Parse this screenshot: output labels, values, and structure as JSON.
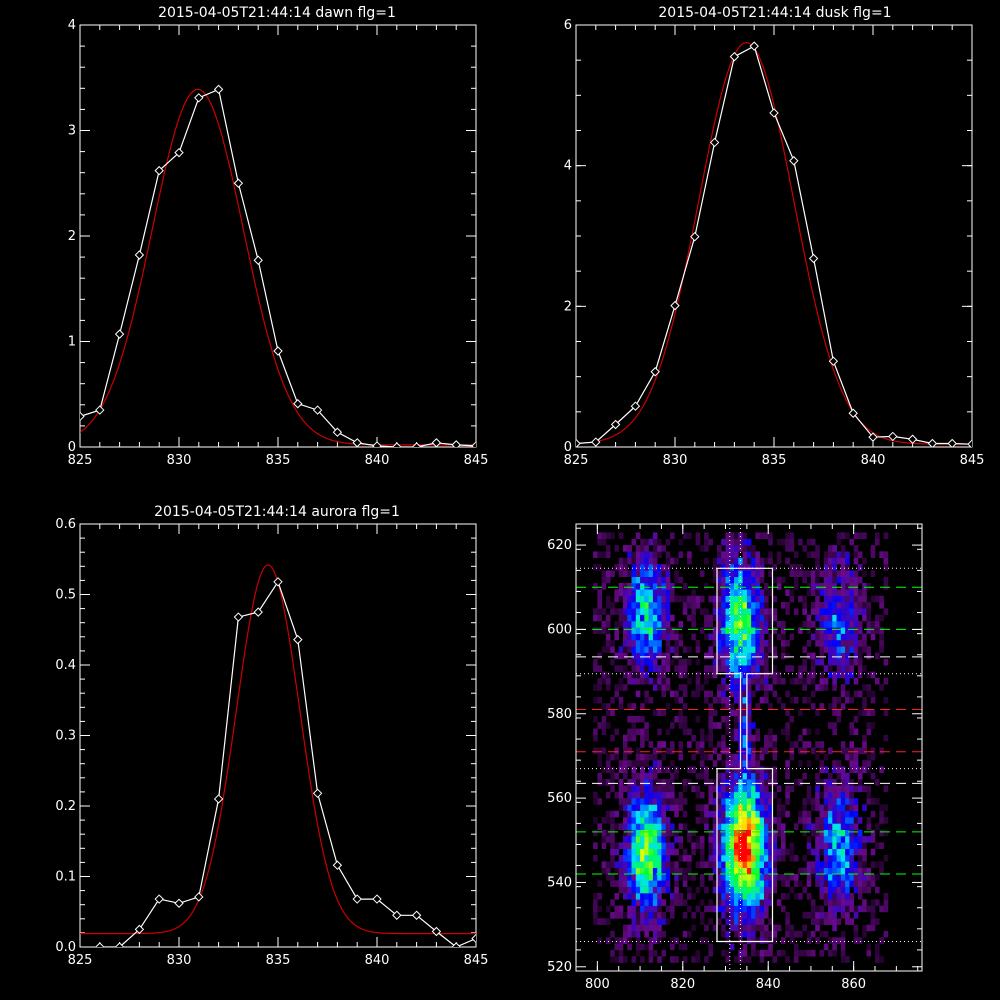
{
  "chart_data": [
    {
      "id": "dawn",
      "type": "line",
      "title": "2015-04-05T21:44:14 dawn flg=1",
      "xlabel": "",
      "ylabel": "",
      "xlim": [
        825,
        845
      ],
      "ylim": [
        0,
        4
      ],
      "xticks": [
        825,
        830,
        835,
        840,
        845
      ],
      "yticks": [
        0,
        1,
        2,
        3,
        4
      ],
      "grid": false,
      "series": [
        {
          "kind": "data",
          "color": "#ffffff",
          "marker": "diamond",
          "x": [
            825,
            826,
            827,
            828,
            829,
            830,
            831,
            832,
            833,
            834,
            835,
            836,
            837,
            838,
            839,
            840,
            841,
            842,
            843,
            844,
            845
          ],
          "y": [
            0.29,
            0.35,
            1.07,
            1.82,
            2.62,
            2.79,
            3.31,
            3.39,
            2.5,
            1.77,
            0.91,
            0.41,
            0.35,
            0.14,
            0.04,
            0.01,
            0.0,
            0.0,
            0.04,
            0.02,
            0.01
          ]
        },
        {
          "kind": "gaussian_fit",
          "color": "#cc0000",
          "amplitude": 3.37,
          "center": 830.95,
          "sigma": 2.3,
          "offset": 0.02
        }
      ]
    },
    {
      "id": "dusk",
      "type": "line",
      "title": "2015-04-05T21:44:14 dusk flg=1",
      "xlabel": "",
      "ylabel": "",
      "xlim": [
        825,
        845
      ],
      "ylim": [
        0,
        6
      ],
      "xticks": [
        825,
        830,
        835,
        840,
        845
      ],
      "yticks": [
        0,
        2,
        4,
        6
      ],
      "grid": false,
      "series": [
        {
          "kind": "data",
          "color": "#ffffff",
          "marker": "diamond",
          "x": [
            825,
            826,
            827,
            828,
            829,
            830,
            831,
            832,
            833,
            834,
            835,
            836,
            837,
            838,
            839,
            840,
            841,
            842,
            843,
            844,
            845
          ],
          "y": [
            0.05,
            0.07,
            0.32,
            0.58,
            1.07,
            2.01,
            2.99,
            4.33,
            5.55,
            5.7,
            4.75,
            4.07,
            2.68,
            1.22,
            0.48,
            0.14,
            0.15,
            0.11,
            0.05,
            0.05,
            0.04
          ]
        },
        {
          "kind": "gaussian_fit",
          "color": "#cc0000",
          "amplitude": 5.71,
          "center": 833.6,
          "sigma": 2.4,
          "offset": 0.04
        }
      ]
    },
    {
      "id": "aurora",
      "type": "line",
      "title": "2015-04-05T21:44:14 aurora flg=1",
      "xlabel": "",
      "ylabel": "",
      "xlim": [
        825,
        845
      ],
      "ylim": [
        0,
        0.6
      ],
      "xticks": [
        825,
        830,
        835,
        840,
        845
      ],
      "yticks": [
        0.0,
        0.1,
        0.2,
        0.3,
        0.4,
        0.5,
        0.6
      ],
      "grid": false,
      "series": [
        {
          "kind": "data",
          "color": "#ffffff",
          "marker": "diamond",
          "x": [
            825,
            826,
            827,
            828,
            829,
            830,
            831,
            832,
            833,
            834,
            835,
            836,
            837,
            838,
            839,
            840,
            841,
            842,
            843,
            844,
            845
          ],
          "y": [
            -0.05,
            0.0,
            0.0,
            0.025,
            0.068,
            0.062,
            0.071,
            0.21,
            0.468,
            0.475,
            0.518,
            0.436,
            0.218,
            0.116,
            0.068,
            0.068,
            0.045,
            0.045,
            0.022,
            0.0,
            0.012
          ]
        },
        {
          "kind": "gaussian_fit",
          "color": "#cc0000",
          "amplitude": 0.523,
          "center": 834.5,
          "sigma": 1.6,
          "offset": 0.019
        }
      ]
    },
    {
      "id": "image",
      "type": "heatmap",
      "title": "",
      "xlabel": "",
      "ylabel": "",
      "xlim": [
        795,
        876
      ],
      "ylim": [
        519,
        625
      ],
      "xticks": [
        800,
        820,
        840,
        860
      ],
      "yticks": [
        520,
        540,
        560,
        580,
        600,
        620
      ],
      "grid": false,
      "colormap": [
        "#000000",
        "#6a0a8a",
        "#0000ff",
        "#00e0ff",
        "#00ff40",
        "#ffff00",
        "#ff0000"
      ],
      "blobs": [
        {
          "x": 811,
          "y": 603,
          "sx": 3.2,
          "sy": 9,
          "amp": 0.55
        },
        {
          "x": 811,
          "y": 547,
          "sx": 3.2,
          "sy": 10,
          "amp": 0.7
        },
        {
          "x": 833,
          "y": 601,
          "sx": 3.4,
          "sy": 10,
          "amp": 0.68
        },
        {
          "x": 834,
          "y": 548,
          "sx": 3.6,
          "sy": 11,
          "amp": 1.0
        },
        {
          "x": 856,
          "y": 601,
          "sx": 3.5,
          "sy": 9,
          "amp": 0.35
        },
        {
          "x": 856,
          "y": 548,
          "sx": 3.5,
          "sy": 10,
          "amp": 0.45
        },
        {
          "x": 834,
          "y": 575,
          "sx": 1.0,
          "sy": 6,
          "amp": 0.25
        }
      ],
      "noise_level": 0.12,
      "vlines": [
        {
          "x": 831,
          "style": "dotted"
        },
        {
          "x": 833.5,
          "style": "dotted"
        }
      ],
      "hlines": [
        {
          "y": 610,
          "color": "#00ff00",
          "style": "dashed"
        },
        {
          "y": 600,
          "color": "#00ff00",
          "style": "dashed"
        },
        {
          "y": 552,
          "color": "#00ff00",
          "style": "dashed"
        },
        {
          "y": 542,
          "color": "#00ff00",
          "style": "dashed"
        },
        {
          "y": 593.5,
          "color": "#ffffff",
          "style": "dashed"
        },
        {
          "y": 563.5,
          "color": "#ffffff",
          "style": "dashed"
        },
        {
          "y": 581,
          "color": "#ff2020",
          "style": "dashed"
        },
        {
          "y": 571,
          "color": "#ff2020",
          "style": "dashed"
        },
        {
          "y": 614.5,
          "color": "#ffffff",
          "style": "dotted"
        },
        {
          "y": 589.5,
          "color": "#ffffff",
          "style": "dotted"
        },
        {
          "y": 567,
          "color": "#ffffff",
          "style": "dotted"
        },
        {
          "y": 526,
          "color": "#ffffff",
          "style": "dotted"
        }
      ],
      "outline": [
        [
          828,
          614.5
        ],
        [
          841,
          614.5
        ],
        [
          841,
          589.5
        ],
        [
          835,
          589.5
        ],
        [
          835,
          567
        ],
        [
          841,
          567
        ],
        [
          841,
          526
        ],
        [
          828,
          526
        ],
        [
          828,
          567
        ],
        [
          833.5,
          567
        ],
        [
          833.5,
          589.5
        ],
        [
          828,
          589.5
        ]
      ]
    }
  ]
}
